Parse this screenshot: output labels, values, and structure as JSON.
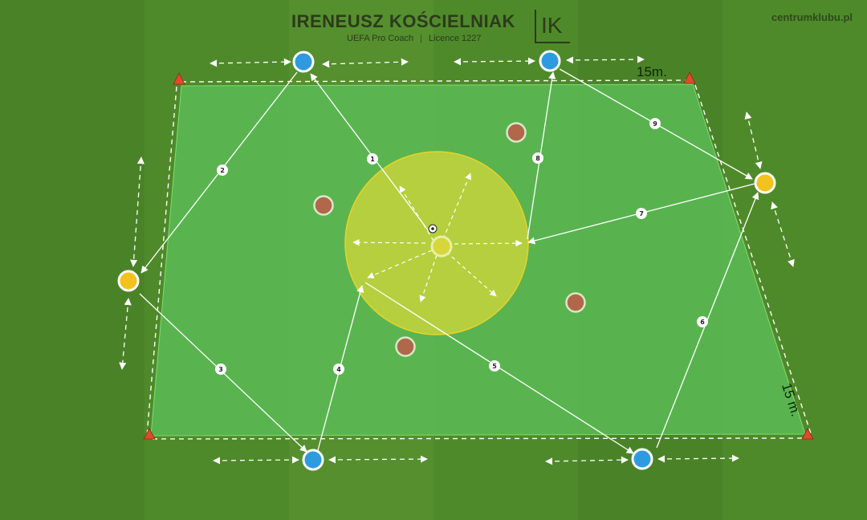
{
  "header": {
    "title": "IRENEUSZ KOŚCIELNIAK",
    "role": "UEFA Pro Coach",
    "licence": "Licence 1227",
    "logo_text": "IK",
    "website": "centrumklubu.pl"
  },
  "dimensions": {
    "top": "15m.",
    "right": "15 m."
  },
  "colors": {
    "grass": "#4f8a2a",
    "area_fill": "#5cc05a",
    "circle_fill": "#c9d43a",
    "player_blue": "#2e9be0",
    "player_yellow": "#f3c21c",
    "player_brown": "#b0674a",
    "player_center": "#d7d63a",
    "cone": "#e04a2a"
  },
  "pass_labels": [
    "1",
    "2",
    "3",
    "4",
    "5",
    "6",
    "7",
    "8",
    "9"
  ],
  "legend_icons": [
    "ball-icon",
    "cone-icon"
  ]
}
